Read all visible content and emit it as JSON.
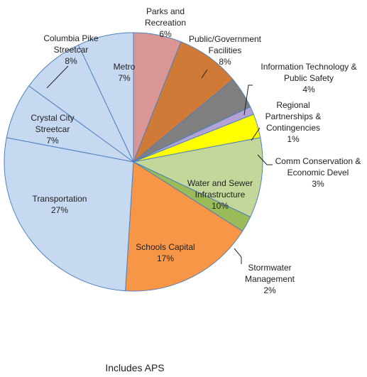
{
  "chart_data": {
    "type": "pie",
    "categories": [
      "Parks and Recreation",
      "Public/Government Facilities",
      "Information Technology & Public Safety",
      "Regional Partnerships & Contingencies",
      "Comm Conservation & Economic Devel",
      "Water and Sewer Infrastructure",
      "Stormwater Management",
      "Schools Capital",
      "Transportation",
      "Crystal City Streetcar",
      "Columbia Pike Streetcar",
      "Metro"
    ],
    "values": [
      6,
      8,
      4,
      1,
      3,
      10,
      2,
      17,
      27,
      7,
      8,
      7
    ],
    "value_labels": [
      "6%",
      "8%",
      "4%",
      "1%",
      "3%",
      "10%",
      "2%",
      "17%",
      "27%",
      "7%",
      "8%",
      "7%"
    ],
    "colors": [
      "#d99694",
      "#d07a37",
      "#7f7f7f",
      "#b3a2d6",
      "#ffff00",
      "#c4d79b",
      "#9bbb59",
      "#f79646",
      "#c6d9f1",
      "#c6d9f1",
      "#c6d9f1",
      "#c6d9f1"
    ],
    "annotation": "Includes APS"
  }
}
